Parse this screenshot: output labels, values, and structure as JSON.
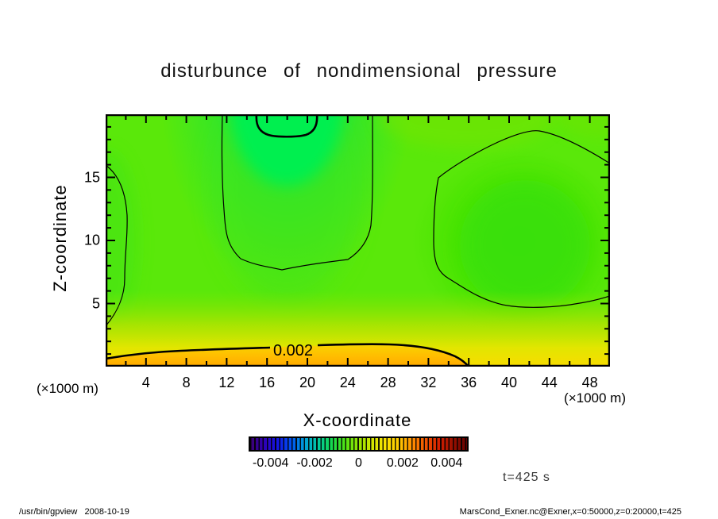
{
  "title": "disturbunce of nondimensional pressure",
  "plot": {
    "x_axis": {
      "label": "X-coordinate",
      "unit": "(×1000 m)",
      "ticks": [
        4,
        8,
        12,
        16,
        20,
        24,
        28,
        32,
        36,
        40,
        44,
        48
      ],
      "range": [
        0,
        50
      ],
      "minor_step": 2,
      "major_step": 4
    },
    "z_axis": {
      "label": "Z-coordinate",
      "unit": "(×1000 m)",
      "ticks": [
        5,
        10,
        15
      ],
      "range": [
        0,
        20
      ],
      "minor_step": 1,
      "major_step": 5
    }
  },
  "colorbar": {
    "tick_labels": [
      "-0.004",
      "-0.002",
      "0",
      "0.002",
      "0.004"
    ],
    "tick_values": [
      -0.004,
      -0.002,
      0,
      0.002,
      0.004
    ],
    "range": [
      -0.005,
      0.005
    ],
    "style": "rainbow-striped",
    "colors": [
      "#3c0070",
      "#1414e6",
      "#00a0dc",
      "#14d850",
      "#96e400",
      "#fae100",
      "#ff8c00",
      "#d21e00",
      "#640000"
    ]
  },
  "annotations": {
    "contour_label": "0.002",
    "time_label": "t=425 s"
  },
  "footer": {
    "left": "/usr/bin/gpview   2008-10-19",
    "right": "MarsCond_Exner.nc@Exner,x=0:50000,z=0:20000,t=425"
  },
  "field_colors": {
    "background_green": "#5ae80a",
    "plume_core_green": "#00ef4f",
    "right_region_green": "#3fe206",
    "band_yellow": "#f8dc00",
    "bottom_orange": "#ffaa00",
    "contour_line": "#000000"
  },
  "chart_data": {
    "type": "heatmap",
    "subtype": "filled-contour",
    "title": "disturbunce of nondimensional pressure",
    "xlabel": "X-coordinate (×1000 m)",
    "ylabel": "Z-coordinate (×1000 m)",
    "x_range": [
      0,
      50
    ],
    "z_range": [
      0,
      20
    ],
    "colorbar_range": [
      -0.005,
      0.005
    ],
    "colorbar_ticks": [
      -0.004,
      -0.002,
      0,
      0.002,
      0.004
    ],
    "contour_interval": 0.001,
    "contour_lines": [
      {
        "level": 0.002,
        "style": "thick",
        "label": "0.002",
        "location": "bottom band, z≈2, spanning x=0..36"
      },
      {
        "level": -0.002,
        "style": "thick",
        "location": "U-shape at top center, x≈15-21, z>18.4"
      },
      {
        "level": 0,
        "style": "thin",
        "location": "around top-center plume, left-edge bulge, and large right region x≈33-50"
      }
    ],
    "time": "t=425 s",
    "grid_estimate": {
      "x": [
        0,
        5,
        10,
        15,
        20,
        25,
        30,
        35,
        40,
        45,
        50
      ],
      "z": [
        0,
        2,
        4,
        6,
        8,
        10,
        12,
        14,
        16,
        18,
        20
      ],
      "values": [
        [
          0.0036,
          0.0035,
          0.0034,
          0.0033,
          0.0032,
          0.003,
          0.0027,
          0.0012,
          0.001,
          0.0013,
          0.0014
        ],
        [
          0.002,
          0.0021,
          0.0021,
          0.0021,
          0.002,
          0.002,
          0.0018,
          0.0009,
          0.0007,
          0.0009,
          0.0011
        ],
        [
          0.001,
          0.0012,
          0.0012,
          0.0011,
          0.0011,
          0.0011,
          0.001,
          0.0004,
          -0.0001,
          0.0001,
          0.0006
        ],
        [
          0.0006,
          0.0007,
          0.0006,
          0.0005,
          0.0005,
          0.0006,
          0.0006,
          0.0001,
          -0.0004,
          -0.0002,
          0.0003
        ],
        [
          0.0004,
          0.0002,
          0.0,
          -0.0002,
          -0.0002,
          0.0001,
          0.0004,
          0.0,
          -0.0006,
          -0.0003,
          0.0002
        ],
        [
          0.0003,
          0.0,
          -0.0004,
          -0.0006,
          -0.0006,
          -0.0002,
          0.0003,
          -0.0001,
          -0.0007,
          -0.0004,
          0.0002
        ],
        [
          0.0001,
          -0.0002,
          -0.0006,
          -0.0008,
          -0.0008,
          -0.0004,
          0.0002,
          -0.0002,
          -0.0007,
          -0.0004,
          0.0002
        ],
        [
          -0.0001,
          -0.0003,
          -0.0007,
          -0.001,
          -0.001,
          -0.0005,
          0.0002,
          -0.0003,
          -0.0006,
          -0.0003,
          0.0002
        ],
        [
          -0.0002,
          -0.0004,
          -0.0009,
          -0.0013,
          -0.0013,
          -0.0006,
          0.0003,
          -0.0004,
          -0.0005,
          -0.0002,
          0.0003
        ],
        [
          0.0,
          -0.0003,
          -0.001,
          -0.0019,
          -0.0019,
          -0.0007,
          0.0004,
          -0.0003,
          -0.0004,
          -0.0001,
          0.0004
        ],
        [
          0.0002,
          -0.0002,
          -0.0012,
          -0.0026,
          -0.0024,
          -0.0006,
          0.0005,
          -0.0002,
          -0.0003,
          0.0,
          0.0004
        ]
      ],
      "note": "values estimated from fill colors and contour levels"
    }
  }
}
